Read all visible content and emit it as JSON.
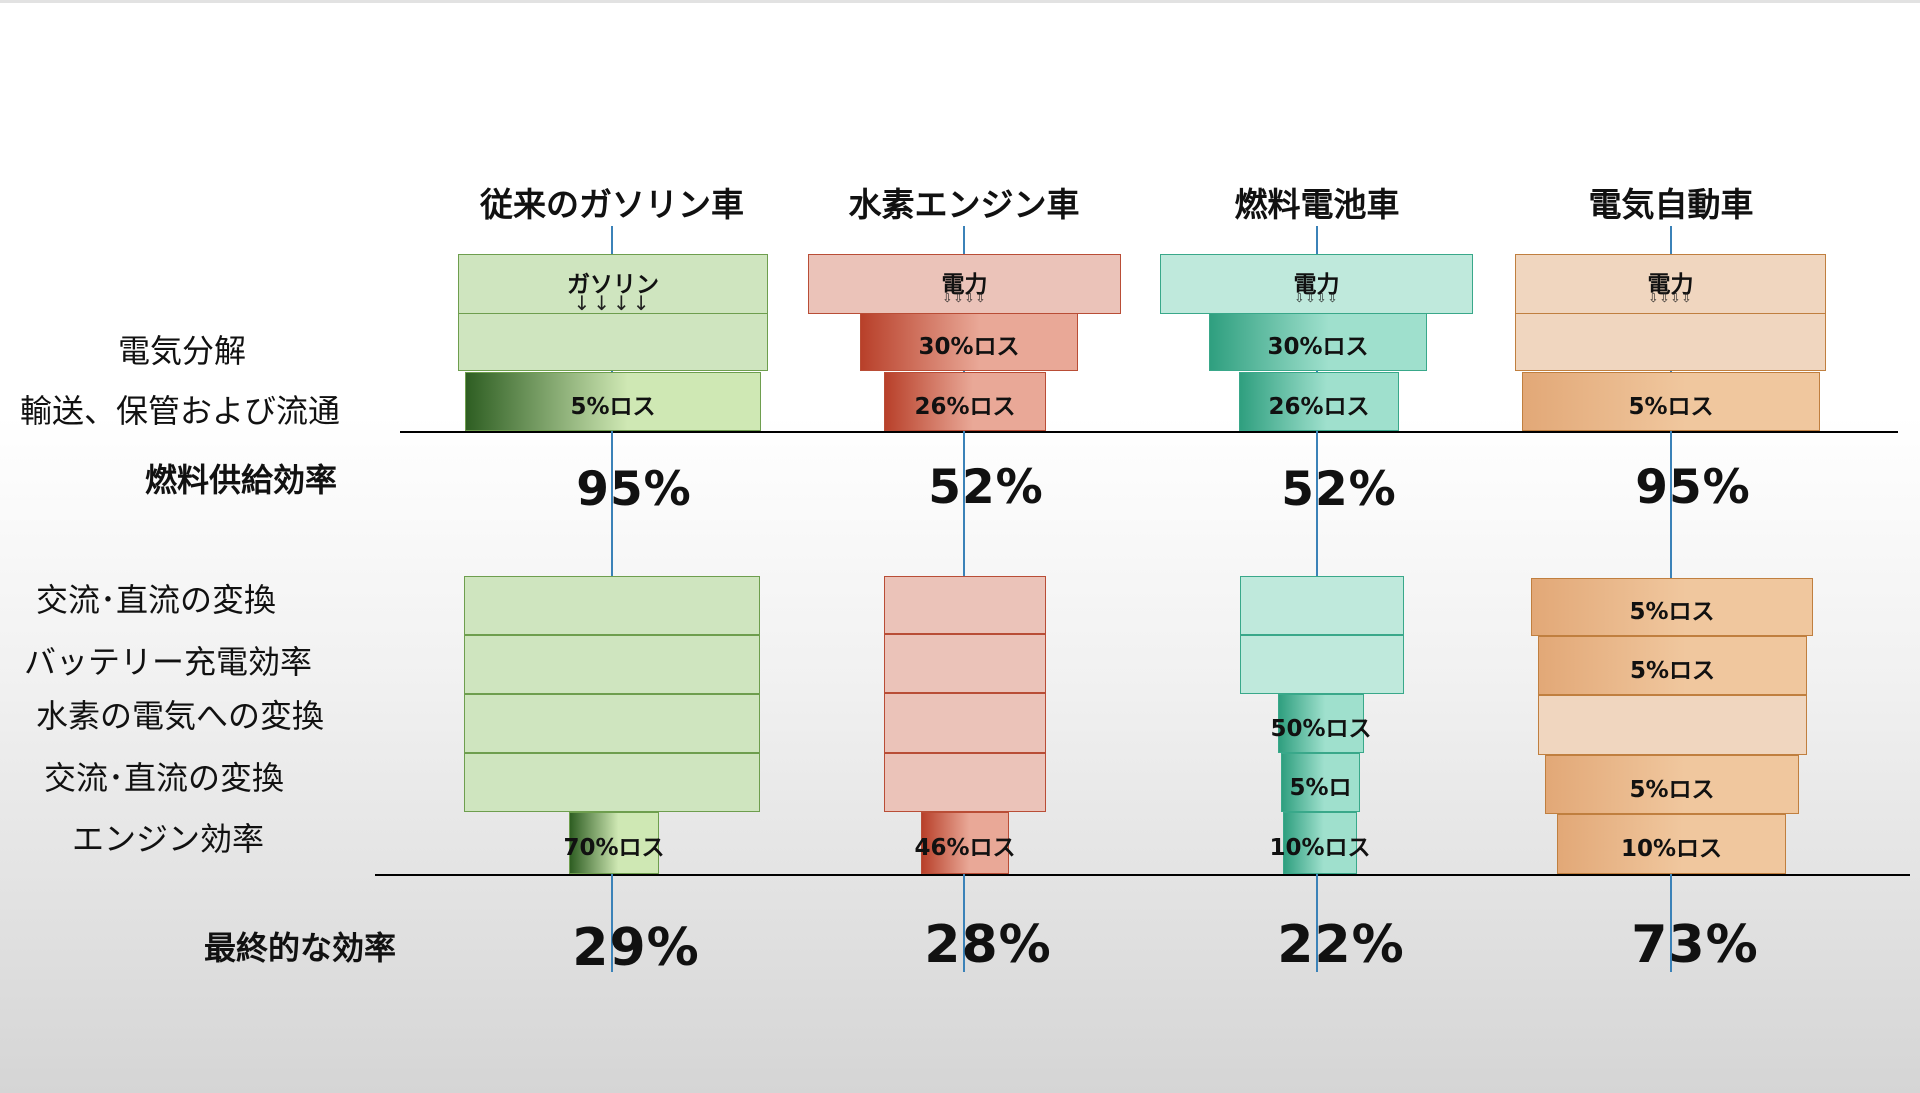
{
  "columns": [
    {
      "title": "従来のガソリン車",
      "source": {
        "label": "ガソリン",
        "arrows": "↓↓↓↓",
        "arrow_style": "solid"
      },
      "supply_losses": [
        "",
        "5%ロス"
      ],
      "fuel_supply_efficiency": "95%",
      "conversion_losses": [
        "",
        "",
        "",
        "",
        "70%ロス"
      ],
      "final_efficiency": "29%",
      "colors": {
        "fill": "#cfe5bf",
        "border": "#6e9e4e",
        "loss_light": "#cfe8b4",
        "loss_dark": "#2e5e22"
      }
    },
    {
      "title": "水素エンジン車",
      "source": {
        "label": "電力",
        "arrows": "⇩⇩⇩⇩",
        "arrow_style": "hollow"
      },
      "supply_losses": [
        "30%ロス",
        "26%ロス"
      ],
      "fuel_supply_efficiency": "52%",
      "conversion_losses": [
        "",
        "",
        "",
        "",
        "46%ロス"
      ],
      "final_efficiency": "28%",
      "colors": {
        "fill": "#ebc3b9",
        "border": "#b94d36",
        "loss_light": "#e9a897",
        "loss_dark": "#b8402a"
      }
    },
    {
      "title": "燃料電池車",
      "source": {
        "label": "電力",
        "arrows": "⇩⇩⇩⇩",
        "arrow_style": "hollow"
      },
      "supply_losses": [
        "30%ロス",
        "26%ロス"
      ],
      "fuel_supply_efficiency": "52%",
      "conversion_losses": [
        "",
        "",
        "50%ロス",
        "5%ロ",
        "10%ロス"
      ],
      "final_efficiency": "22%",
      "colors": {
        "fill": "#bfe9dc",
        "border": "#39a88a",
        "loss_light": "#9fe0cd",
        "loss_dark": "#2f9f7f"
      }
    },
    {
      "title": "電気自動車",
      "source": {
        "label": "電力",
        "arrows": "⇩⇩⇩⇩",
        "arrow_style": "hollow"
      },
      "supply_losses": [
        "",
        "5%ロス"
      ],
      "fuel_supply_efficiency": "95%",
      "conversion_losses": [
        "5%ロス",
        "5%ロス",
        "",
        "5%ロス",
        "10%ロス"
      ],
      "final_efficiency": "73%",
      "colors": {
        "fill": "#f0d6bf",
        "border": "#c07f3f",
        "loss_light": "#f0c79e",
        "loss_dark": "#e2a877"
      }
    }
  ],
  "row_labels": {
    "electrolysis": "電気分解",
    "transport": "輸送、保管および流通",
    "fuel_supply": "燃料供給効率",
    "acdc1": "交流･直流の変換",
    "battery": "バッテリー充電効率",
    "h2_to_power": "水素の電気への変換",
    "acdc2": "交流･直流の変換",
    "engine": "エンジン効率",
    "final": "最終的な効率"
  }
}
